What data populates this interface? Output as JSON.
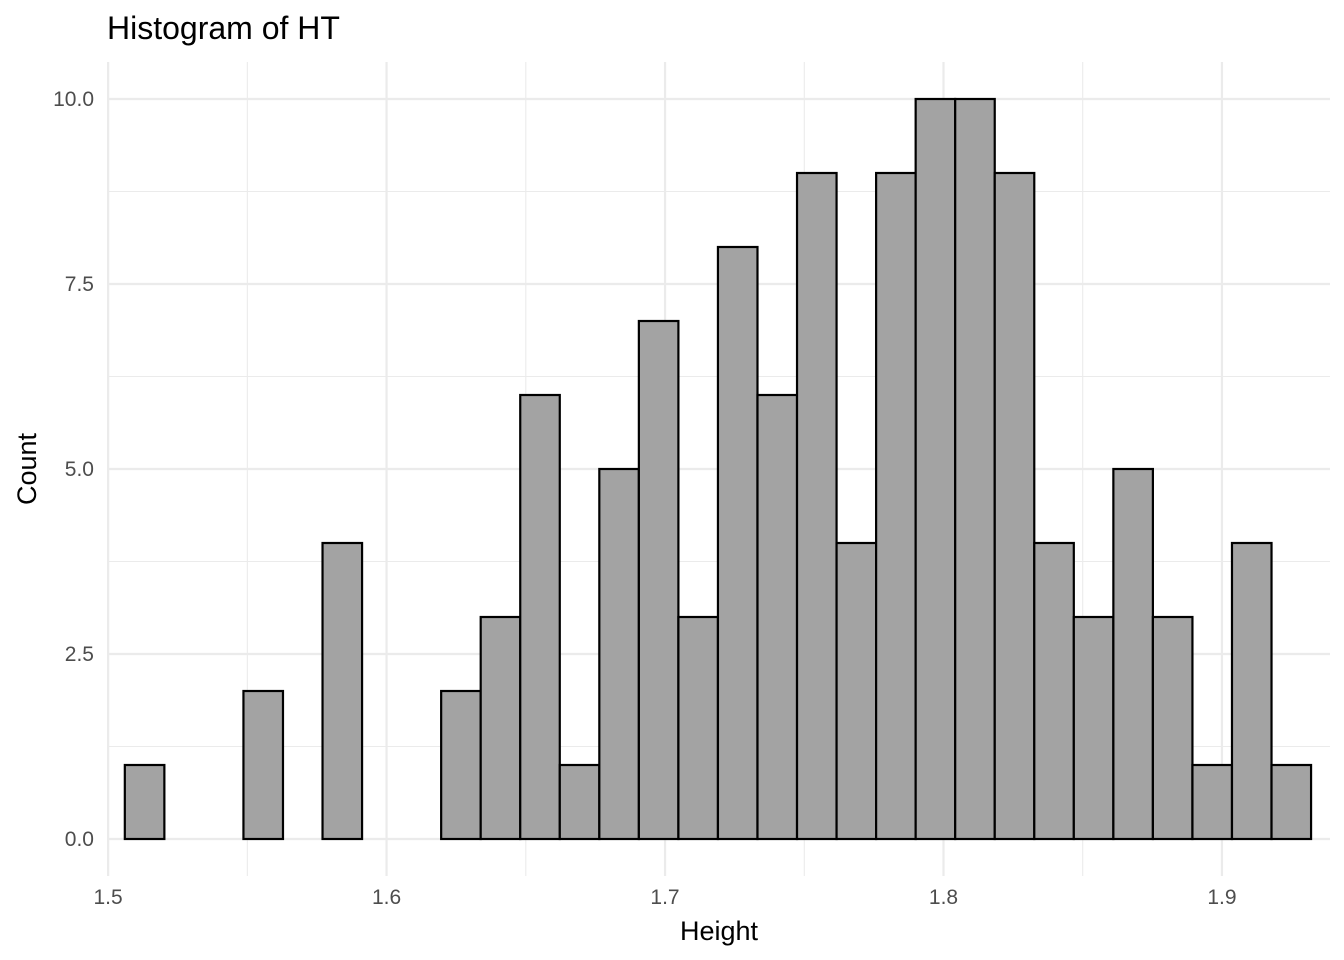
{
  "chart_data": {
    "type": "histogram",
    "title": "Histogram of HT",
    "xlabel": "Height",
    "ylabel": "Count",
    "xlim": [
      1.4996,
      1.9388
    ],
    "ylim": [
      -0.5,
      10.5
    ],
    "x_ticks": [
      1.5,
      1.6,
      1.7,
      1.8,
      1.9
    ],
    "x_tick_labels": [
      "1.5",
      "1.6",
      "1.7",
      "1.8",
      "1.9"
    ],
    "x_minor_ticks": [
      1.55,
      1.65,
      1.75,
      1.85
    ],
    "y_ticks": [
      0,
      2.5,
      5,
      7.5,
      10
    ],
    "y_tick_labels": [
      "0.0",
      "2.5",
      "5.0",
      "7.5",
      "10.0"
    ],
    "y_minor_ticks": [
      1.25,
      3.75,
      6.25,
      8.75
    ],
    "bin_width": 0.0142,
    "x_first_bin_left": 1.506,
    "counts": [
      1,
      0,
      0,
      2,
      0,
      4,
      0,
      0,
      2,
      3,
      6,
      1,
      5,
      7,
      3,
      8,
      6,
      9,
      4,
      9,
      10,
      10,
      9,
      4,
      3,
      5,
      3,
      1,
      4,
      1
    ],
    "bar_fill": "#a3a3a3",
    "bar_outline": "#000000",
    "grid": true,
    "legend": "none"
  }
}
